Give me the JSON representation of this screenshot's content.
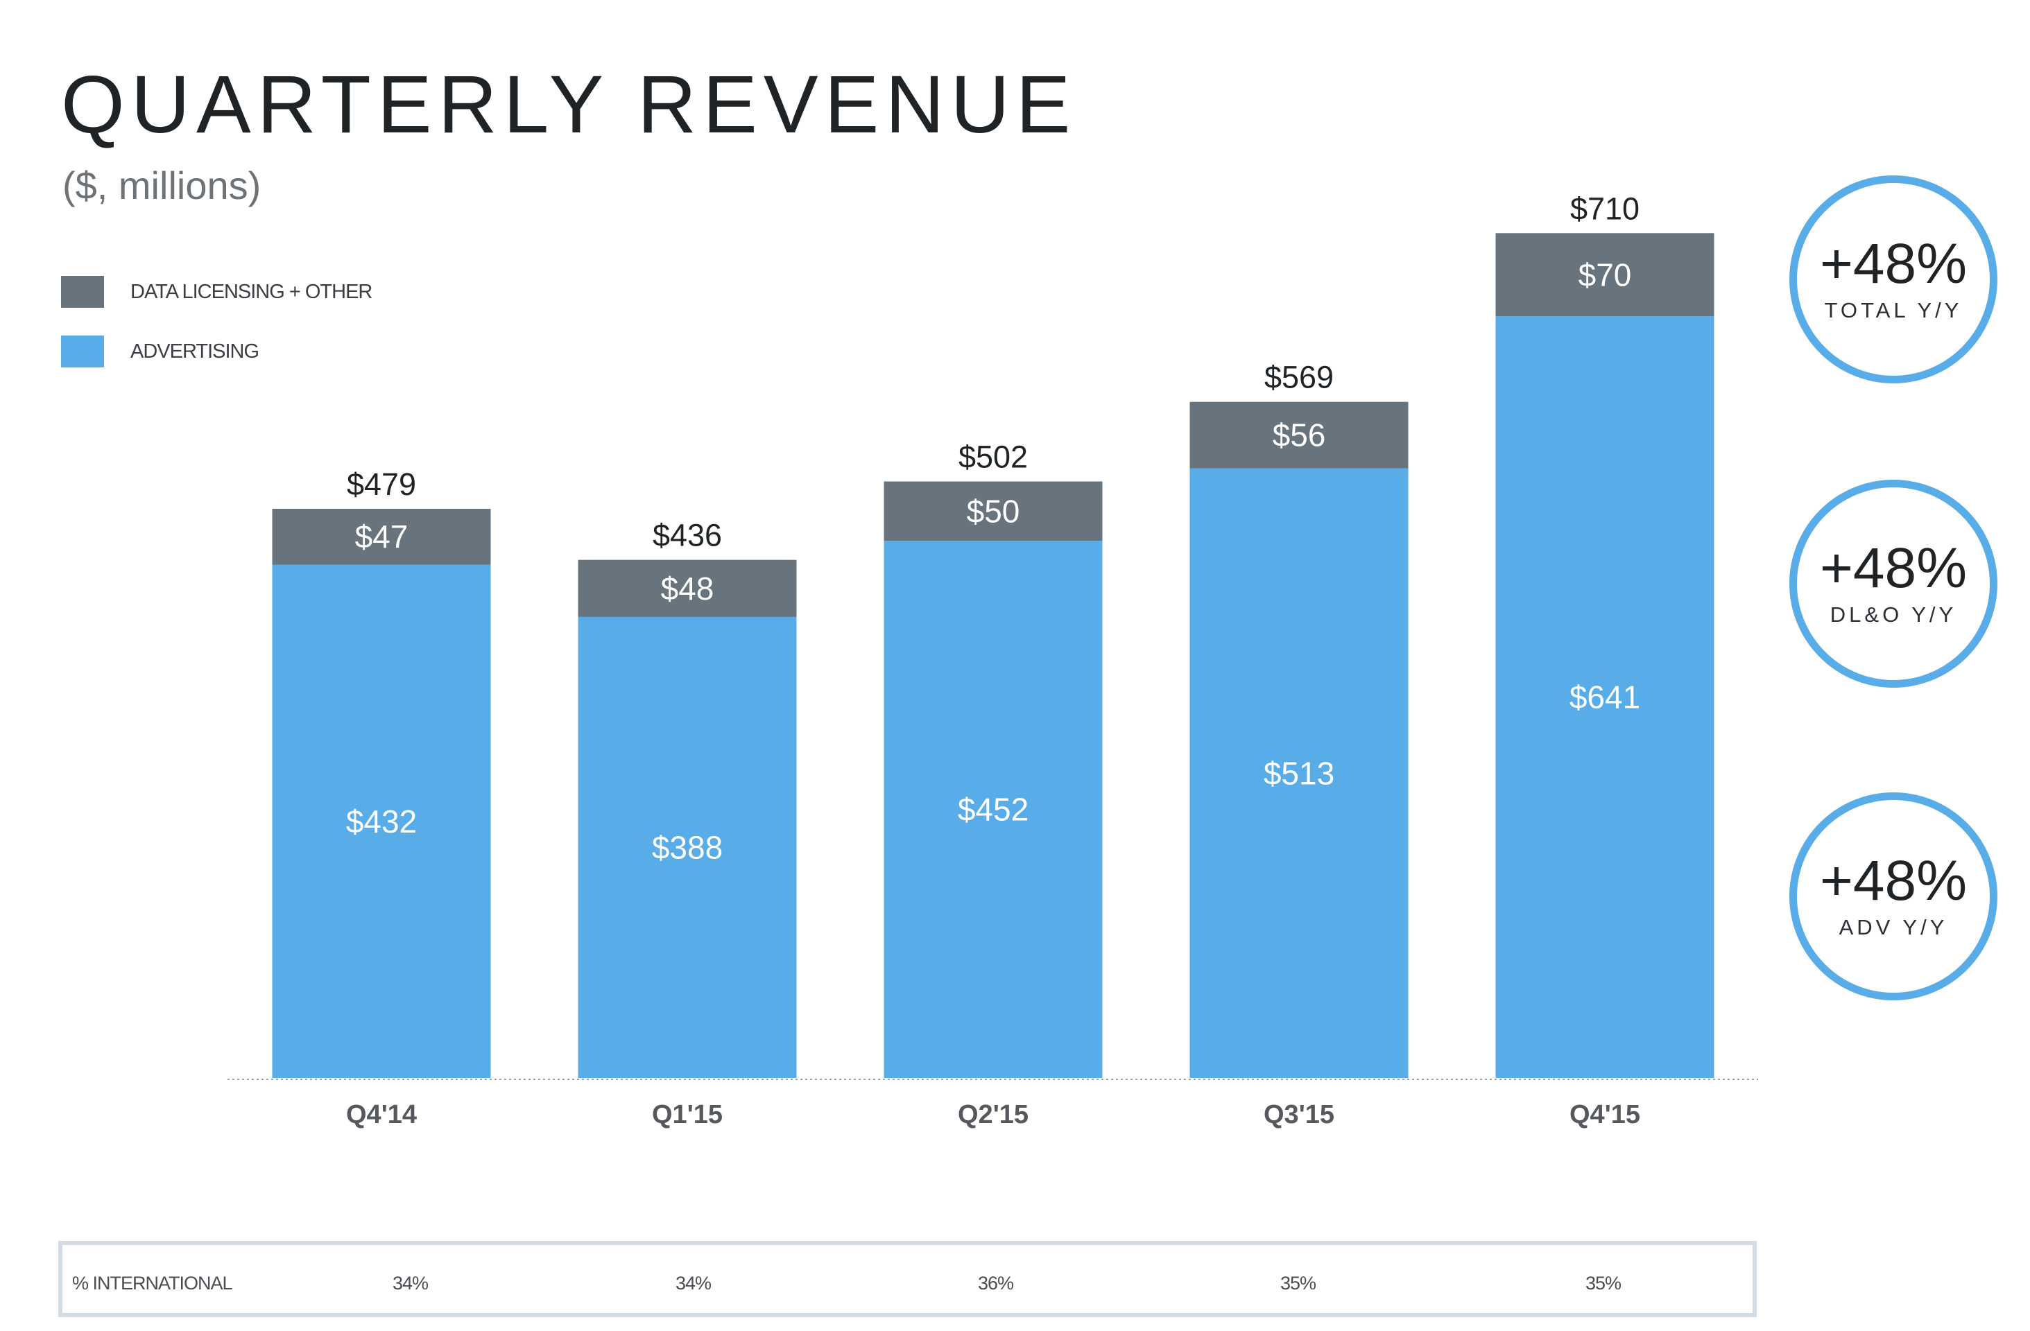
{
  "title": "QUARTERLY REVENUE",
  "subtitle": "($, millions)",
  "legend": [
    {
      "label": "DATA LICENSING + OTHER",
      "color": "#67737d"
    },
    {
      "label": "ADVERTISING",
      "color": "#58ace8"
    }
  ],
  "chart_data": {
    "type": "bar",
    "stacked": true,
    "title": "QUARTERLY REVENUE",
    "subtitle": "($, millions)",
    "categories": [
      "Q4'14",
      "Q1'15",
      "Q2'15",
      "Q3'15",
      "Q4'15"
    ],
    "series": [
      {
        "name": "ADVERTISING",
        "color": "#58ace8",
        "values": [
          432,
          388,
          452,
          513,
          641
        ],
        "labels": [
          "$432",
          "$388",
          "$452",
          "$513",
          "$641"
        ]
      },
      {
        "name": "DATA LICENSING + OTHER",
        "color": "#67737d",
        "values": [
          47,
          48,
          50,
          56,
          70
        ],
        "labels": [
          "$47",
          "$48",
          "$50",
          "$56",
          "$70"
        ]
      }
    ],
    "totals": [
      479,
      436,
      502,
      569,
      710
    ],
    "total_labels": [
      "$479",
      "$436",
      "$502",
      "$569",
      "$710"
    ],
    "ylim": [
      0,
      710
    ],
    "grid": false,
    "legend_position": "top-left"
  },
  "callouts": [
    {
      "value": "+48%",
      "label": "TOTAL Y/Y"
    },
    {
      "value": "+48%",
      "label": "DL&O Y/Y"
    },
    {
      "value": "+48%",
      "label": "ADV Y/Y"
    }
  ],
  "international": {
    "label": "% INTERNATIONAL",
    "values": [
      "34%",
      "34%",
      "36%",
      "35%",
      "35%"
    ]
  }
}
